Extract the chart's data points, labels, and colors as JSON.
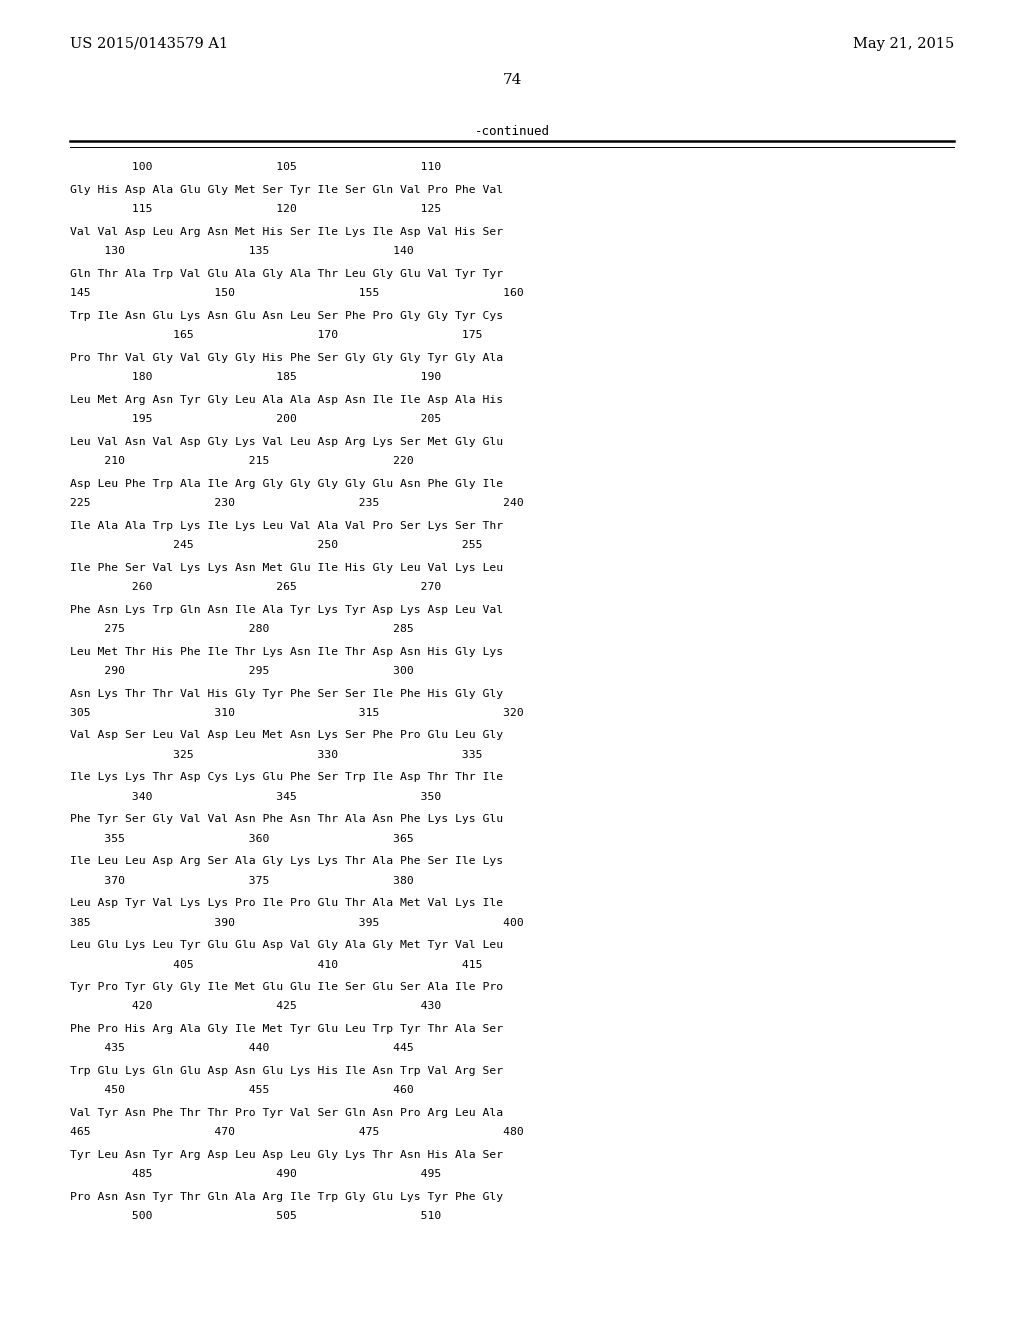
{
  "header_left": "US 2015/0143579 A1",
  "header_right": "May 21, 2015",
  "page_number": "74",
  "continued_text": "-continued",
  "background_color": "#ffffff",
  "text_color": "#000000",
  "ruler_line": "         100                  105                  110",
  "sequence_lines": [
    [
      "Gly His Asp Ala Glu Gly Met Ser Tyr Ile Ser Gln Val Pro Phe Val",
      "         115                  120                  125"
    ],
    [
      "Val Val Asp Leu Arg Asn Met His Ser Ile Lys Ile Asp Val His Ser",
      "     130                  135                  140"
    ],
    [
      "Gln Thr Ala Trp Val Glu Ala Gly Ala Thr Leu Gly Glu Val Tyr Tyr",
      "145                  150                  155                  160"
    ],
    [
      "Trp Ile Asn Glu Lys Asn Glu Asn Leu Ser Phe Pro Gly Gly Tyr Cys",
      "               165                  170                  175"
    ],
    [
      "Pro Thr Val Gly Val Gly Gly His Phe Ser Gly Gly Gly Tyr Gly Ala",
      "         180                  185                  190"
    ],
    [
      "Leu Met Arg Asn Tyr Gly Leu Ala Ala Asp Asn Ile Ile Asp Ala His",
      "         195                  200                  205"
    ],
    [
      "Leu Val Asn Val Asp Gly Lys Val Leu Asp Arg Lys Ser Met Gly Glu",
      "     210                  215                  220"
    ],
    [
      "Asp Leu Phe Trp Ala Ile Arg Gly Gly Gly Gly Glu Asn Phe Gly Ile",
      "225                  230                  235                  240"
    ],
    [
      "Ile Ala Ala Trp Lys Ile Lys Leu Val Ala Val Pro Ser Lys Ser Thr",
      "               245                  250                  255"
    ],
    [
      "Ile Phe Ser Val Lys Lys Asn Met Glu Ile His Gly Leu Val Lys Leu",
      "         260                  265                  270"
    ],
    [
      "Phe Asn Lys Trp Gln Asn Ile Ala Tyr Lys Tyr Asp Lys Asp Leu Val",
      "     275                  280                  285"
    ],
    [
      "Leu Met Thr His Phe Ile Thr Lys Asn Ile Thr Asp Asn His Gly Lys",
      "     290                  295                  300"
    ],
    [
      "Asn Lys Thr Thr Val His Gly Tyr Phe Ser Ser Ile Phe His Gly Gly",
      "305                  310                  315                  320"
    ],
    [
      "Val Asp Ser Leu Val Asp Leu Met Asn Lys Ser Phe Pro Glu Leu Gly",
      "               325                  330                  335"
    ],
    [
      "Ile Lys Lys Thr Asp Cys Lys Glu Phe Ser Trp Ile Asp Thr Thr Ile",
      "         340                  345                  350"
    ],
    [
      "Phe Tyr Ser Gly Val Val Asn Phe Asn Thr Ala Asn Phe Lys Lys Glu",
      "     355                  360                  365"
    ],
    [
      "Ile Leu Leu Asp Arg Ser Ala Gly Lys Lys Thr Ala Phe Ser Ile Lys",
      "     370                  375                  380"
    ],
    [
      "Leu Asp Tyr Val Lys Lys Pro Ile Pro Glu Thr Ala Met Val Lys Ile",
      "385                  390                  395                  400"
    ],
    [
      "Leu Glu Lys Leu Tyr Glu Glu Asp Val Gly Ala Gly Met Tyr Val Leu",
      "               405                  410                  415"
    ],
    [
      "Tyr Pro Tyr Gly Gly Ile Met Glu Glu Ile Ser Glu Ser Ala Ile Pro",
      "         420                  425                  430"
    ],
    [
      "Phe Pro His Arg Ala Gly Ile Met Tyr Glu Leu Trp Tyr Thr Ala Ser",
      "     435                  440                  445"
    ],
    [
      "Trp Glu Lys Gln Glu Asp Asn Glu Lys His Ile Asn Trp Val Arg Ser",
      "     450                  455                  460"
    ],
    [
      "Val Tyr Asn Phe Thr Thr Pro Tyr Val Ser Gln Asn Pro Arg Leu Ala",
      "465                  470                  475                  480"
    ],
    [
      "Tyr Leu Asn Tyr Arg Asp Leu Asp Leu Gly Lys Thr Asn His Ala Ser",
      "         485                  490                  495"
    ],
    [
      "Pro Asn Asn Tyr Thr Gln Ala Arg Ile Trp Gly Glu Lys Tyr Phe Gly",
      "         500                  505                  510"
    ]
  ]
}
